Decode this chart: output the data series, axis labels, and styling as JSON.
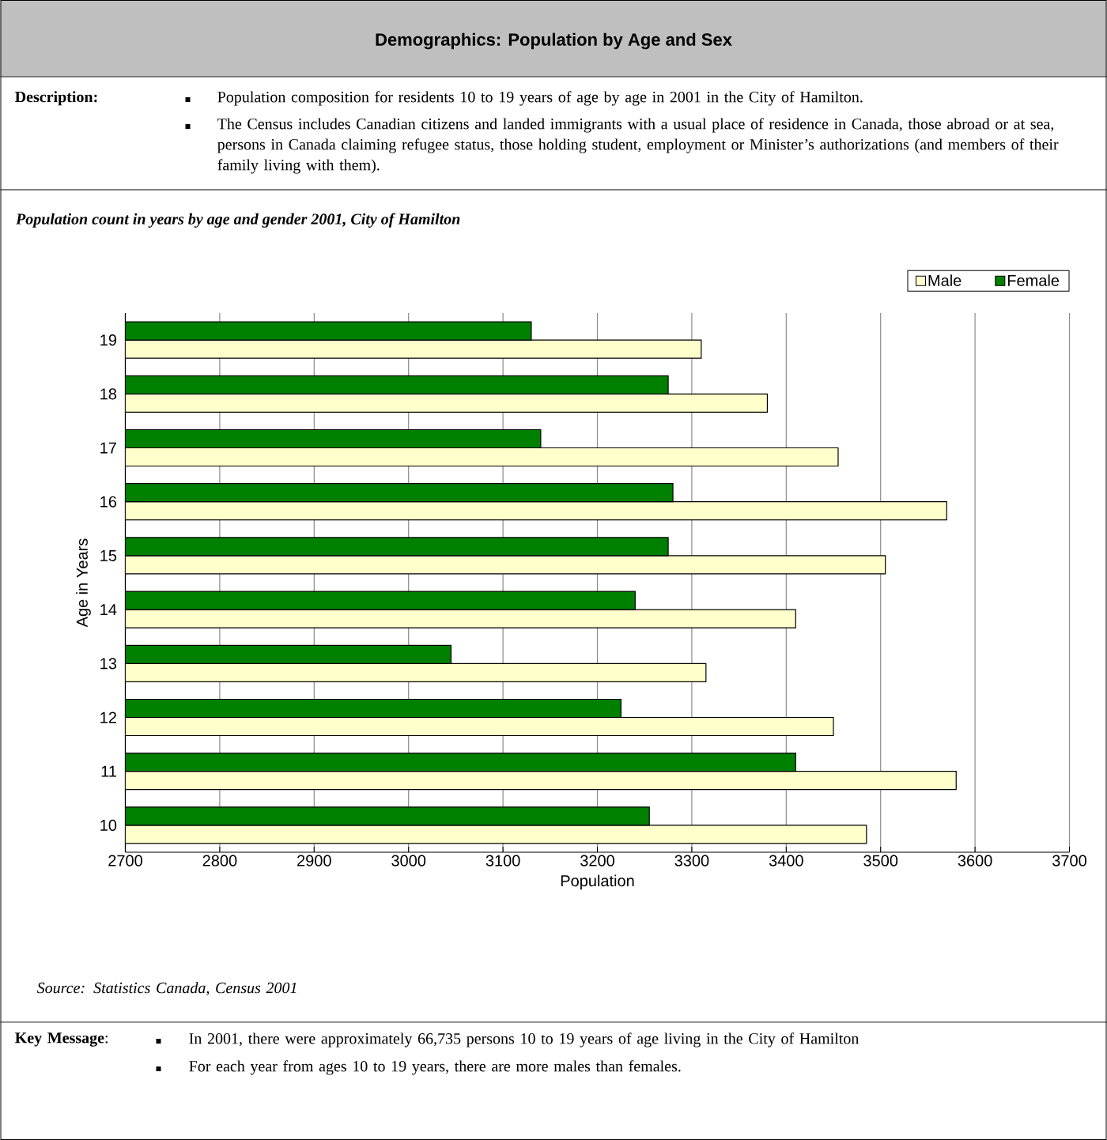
{
  "chart_data": {
    "type": "bar",
    "orientation": "horizontal",
    "title": "Demographics:  Population by Age and Sex",
    "subtitle": "Population count in years by age and gender 2001, City of Hamilton",
    "xlabel": "Population",
    "ylabel": "Age in Years",
    "categories": [
      "19",
      "18",
      "17",
      "16",
      "15",
      "14",
      "13",
      "12",
      "11",
      "10"
    ],
    "series": [
      {
        "name": "Male",
        "color": "#ffffcc",
        "values": [
          3310,
          3380,
          3455,
          3570,
          3505,
          3410,
          3315,
          3450,
          3580,
          3485
        ]
      },
      {
        "name": "Female",
        "color": "#008000",
        "values": [
          3130,
          3275,
          3140,
          3280,
          3275,
          3240,
          3045,
          3225,
          3410,
          3255
        ]
      }
    ],
    "xlim": [
      2700,
      3700
    ],
    "xticks": [
      2700,
      2800,
      2900,
      3000,
      3100,
      3200,
      3300,
      3400,
      3500,
      3600,
      3700
    ],
    "grid": "x",
    "legend": "top right",
    "annotations": [
      "Description:",
      "Population composition for residents 10 to 19 years of age by age in 2001 in the City of Hamilton.",
      "The Census includes Canadian citizens and landed immigrants with a usual place of residence in Canada, those abroad or at sea, persons in Canada claiming refugee status, those holding student, employment or Minister’s authorizations (and members of their family living with them).",
      "Source:  Statistics Canada, Census 2001",
      "**Key Message**:",
      "In 2001, there were approximately 66,735 persons 10 to 19 years of age living in the City of Hamilton",
      "For each year from ages 10 to 19 years, there are more males than females."
    ]
  }
}
